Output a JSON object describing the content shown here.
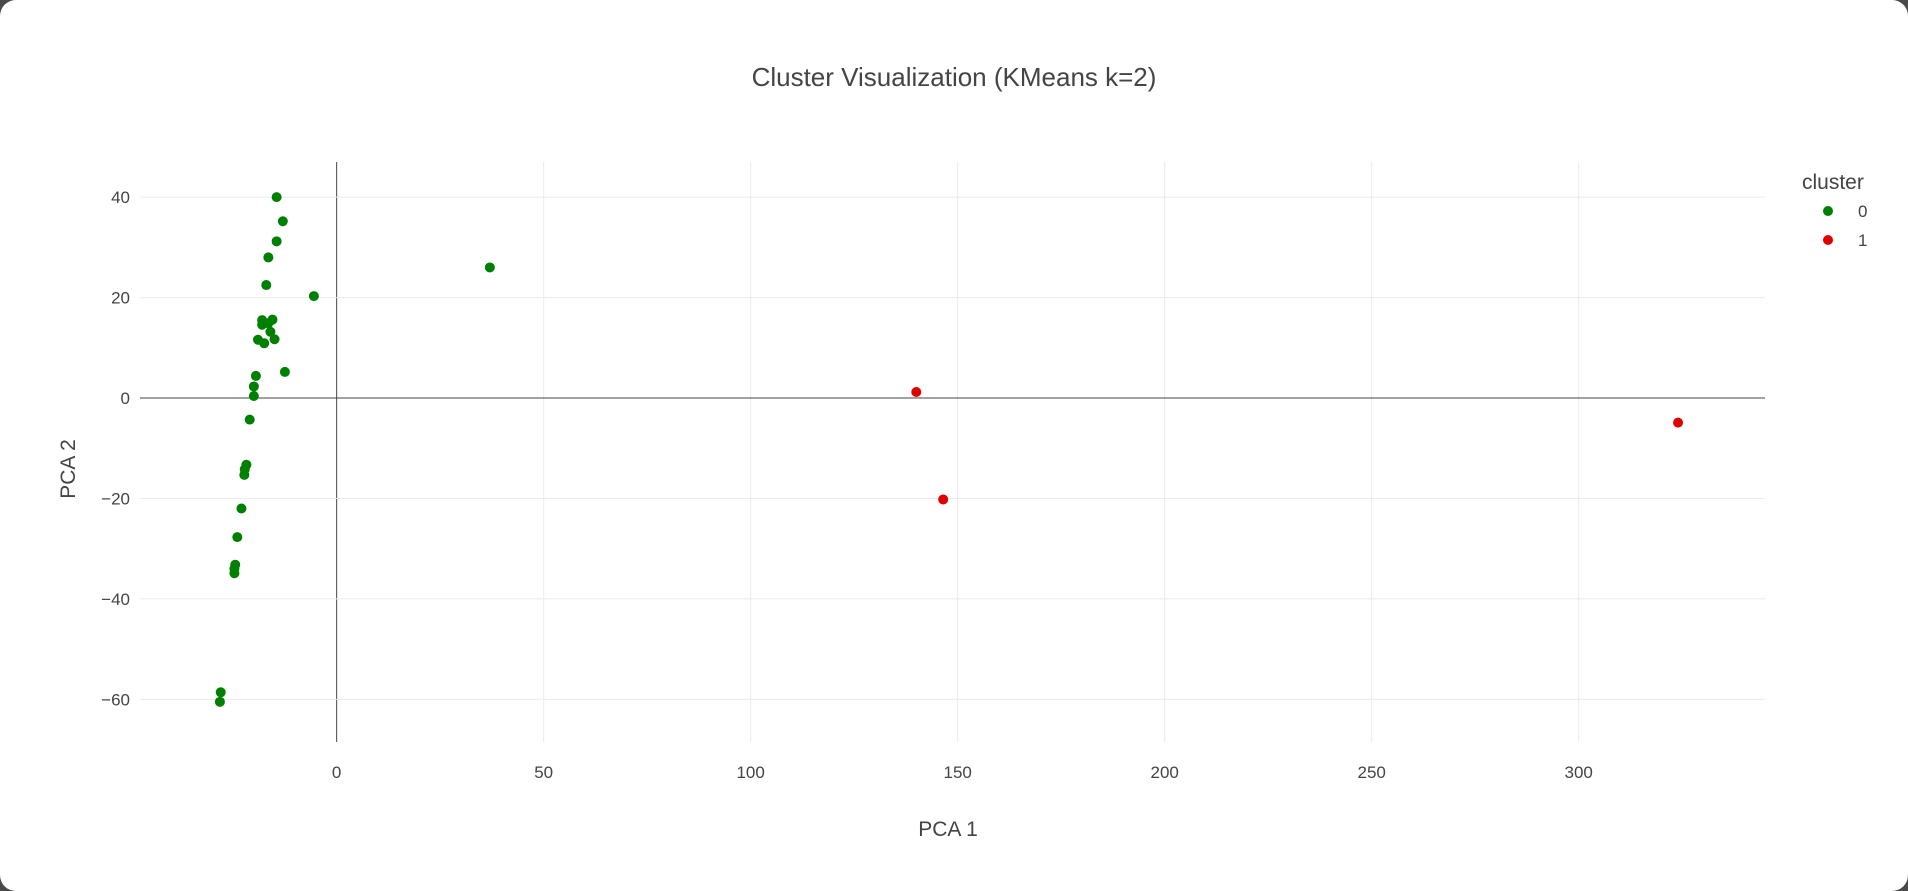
{
  "chart_data": {
    "type": "scatter",
    "title": "Cluster Visualization (KMeans k=2)",
    "xlabel": "PCA 1",
    "ylabel": "PCA 2",
    "xlim": [
      -47.5,
      345
    ],
    "ylim": [
      -68.5,
      47
    ],
    "x_ticks": [
      0,
      50,
      100,
      150,
      200,
      250,
      300
    ],
    "y_ticks": [
      -60,
      -40,
      -20,
      0,
      20,
      40
    ],
    "x_tick_labels": [
      "0",
      "50",
      "100",
      "150",
      "200",
      "250",
      "300"
    ],
    "y_tick_labels": [
      "−60",
      "−40",
      "−20",
      "0",
      "20",
      "40"
    ],
    "grid": true,
    "legend": {
      "title": "cluster",
      "position": "right"
    },
    "series": [
      {
        "name": "0",
        "color": "#008000",
        "points": [
          [
            -14.5,
            40
          ],
          [
            -13,
            35.2
          ],
          [
            -14.5,
            31.2
          ],
          [
            -16.5,
            28
          ],
          [
            -17,
            22.5
          ],
          [
            -5.5,
            20.3
          ],
          [
            37,
            26
          ],
          [
            -18,
            15.5
          ],
          [
            -15.5,
            15.6
          ],
          [
            -18,
            14.6
          ],
          [
            -16.5,
            14.9
          ],
          [
            -16,
            13.2
          ],
          [
            -19,
            11.6
          ],
          [
            -15,
            11.7
          ],
          [
            -17.5,
            10.9
          ],
          [
            -12.5,
            5.2
          ],
          [
            -19.5,
            4.4
          ],
          [
            -20,
            2.3
          ],
          [
            -20,
            0.4
          ],
          [
            -21,
            -4.3
          ],
          [
            -21.8,
            -13.3
          ],
          [
            -22.2,
            -14.2
          ],
          [
            -22.3,
            -15.3
          ],
          [
            -23,
            -22
          ],
          [
            -24,
            -27.7
          ],
          [
            -24.5,
            -33.2
          ],
          [
            -24.7,
            -34
          ],
          [
            -24.7,
            -34.9
          ],
          [
            -28,
            -58.6
          ],
          [
            -28.2,
            -60.5
          ]
        ]
      },
      {
        "name": "1",
        "color": "#e00000",
        "points": [
          [
            140,
            1.2
          ],
          [
            146.5,
            -20.2
          ],
          [
            324,
            -4.9
          ]
        ]
      }
    ]
  }
}
